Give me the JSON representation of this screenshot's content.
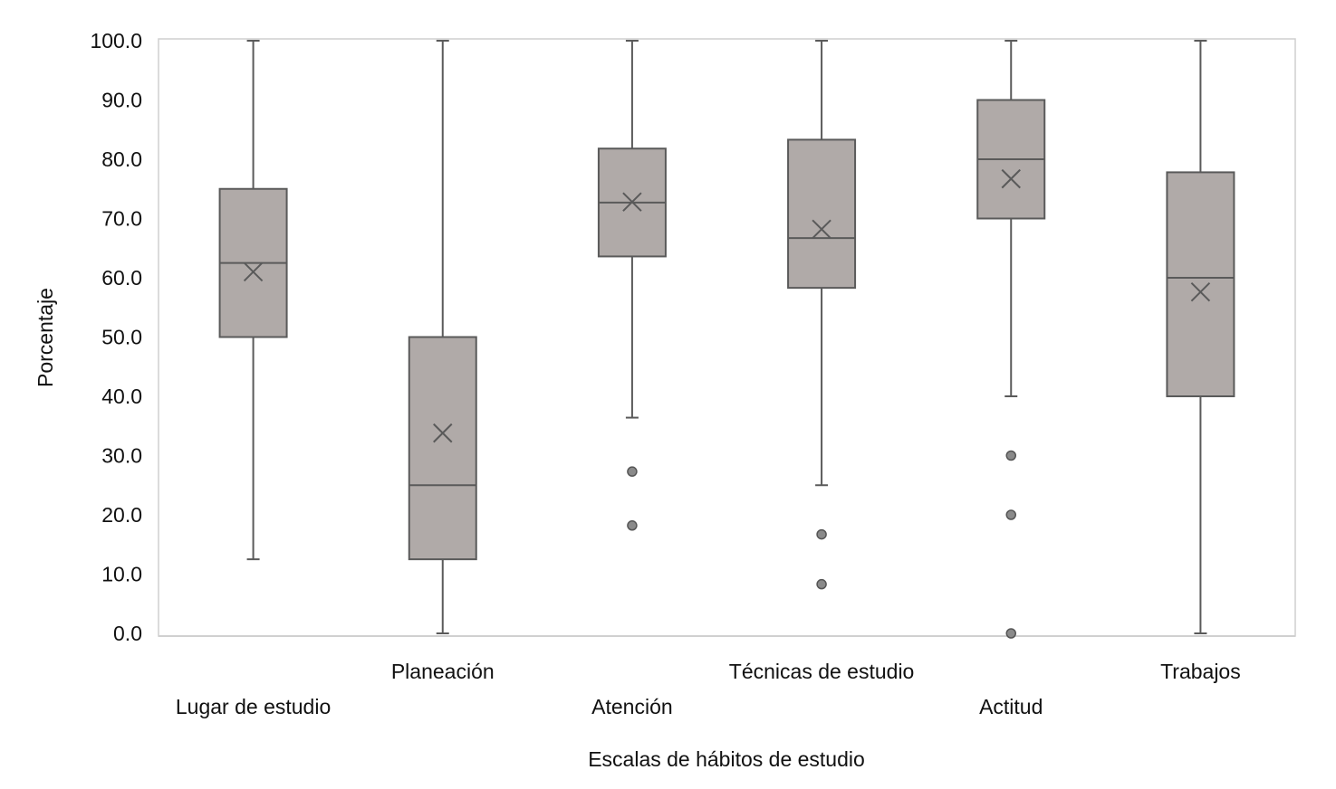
{
  "chart_data": {
    "type": "box",
    "xlabel": "Escalas de hábitos de estudio",
    "ylabel": "Porcentaje",
    "ylim": [
      0,
      100
    ],
    "yticks": [
      "0.0",
      "10.0",
      "20.0",
      "30.0",
      "40.0",
      "50.0",
      "60.0",
      "70.0",
      "80.0",
      "90.0",
      "100.0"
    ],
    "grid": false,
    "box_color": "#b0aaa8",
    "line_color": "#5a5a5a",
    "categories": [
      {
        "label": "Lugar de estudio",
        "min": 12.5,
        "q1": 50.0,
        "median": 62.5,
        "q3": 75.0,
        "max": 100.0,
        "mean": 61.0,
        "outliers": []
      },
      {
        "label": "Planeación",
        "min": 0.0,
        "q1": 12.5,
        "median": 25.0,
        "q3": 50.0,
        "max": 100.0,
        "mean": 33.8,
        "outliers": []
      },
      {
        "label": "Atención",
        "min": 36.4,
        "q1": 63.6,
        "median": 72.7,
        "q3": 81.8,
        "max": 100.0,
        "mean": 72.8,
        "outliers": [
          27.3,
          18.2
        ]
      },
      {
        "label": "Técnicas de estudio",
        "min": 25.0,
        "q1": 58.3,
        "median": 66.7,
        "q3": 83.3,
        "max": 100.0,
        "mean": 68.2,
        "outliers": [
          16.7,
          8.3
        ]
      },
      {
        "label": "Actitud",
        "min": 40.0,
        "q1": 70.0,
        "median": 80.0,
        "q3": 90.0,
        "max": 100.0,
        "mean": 76.7,
        "outliers": [
          30.0,
          20.0,
          0.0
        ]
      },
      {
        "label": "Trabajos",
        "min": 0.0,
        "q1": 40.0,
        "median": 60.0,
        "q3": 77.8,
        "max": 100.0,
        "mean": 57.6,
        "outliers": []
      }
    ]
  }
}
